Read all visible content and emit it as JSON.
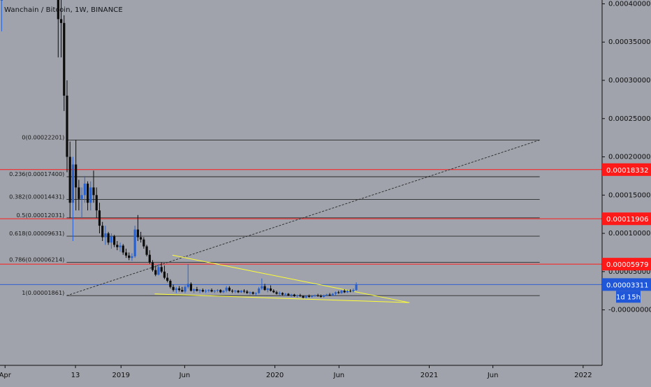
{
  "title": "Wanchain / Bitcoin, 1W, BINANCE",
  "chart_data": {
    "type": "candlestick",
    "title": "Wanchain / Bitcoin, 1W, BINANCE",
    "symbol": "Wanchain / Bitcoin",
    "interval": "1W",
    "exchange": "BINANCE",
    "ylim": [
      -7.25e-05,
      0.000405
    ],
    "y_tick_labels": [
      "0.00040000",
      "0.00035000",
      "0.00030000",
      "0.00025000",
      "0.00020000",
      "0.00015000",
      "0.00010000",
      "0.00005000",
      "-0.00000000"
    ],
    "y_tick_values": [
      0.0004,
      0.00035,
      0.0003,
      0.00025,
      0.0002,
      0.00015,
      0.0001,
      5e-05,
      0
    ],
    "x_tick_labels": [
      "Apr",
      "13",
      "2019",
      "Jun",
      "2020",
      "Jun",
      "2021",
      "Jun",
      "2022"
    ],
    "x_tick_dates": [
      "2018-04-01",
      "2018-09-15",
      "2019-01-01",
      "2019-06-01",
      "2020-01-01",
      "2020-06-01",
      "2021-01-01",
      "2021-06-01",
      "2022-01-01"
    ],
    "x_range": [
      "2018-03-20",
      "2022-02-15"
    ],
    "fib_levels": [
      {
        "ratio": "0",
        "label": "0(0.00022201)",
        "value": 0.00022201
      },
      {
        "ratio": "0.236",
        "label": "0.236(0.00017400)",
        "value": 0.000174
      },
      {
        "ratio": "0.382",
        "label": "0.382(0.00014431)",
        "value": 0.00014431
      },
      {
        "ratio": "0.5",
        "label": "0.5(0.00012031)",
        "value": 0.00012031
      },
      {
        "ratio": "0.618",
        "label": "0.618(0.00009631)",
        "value": 9.631e-05
      },
      {
        "ratio": "0.786",
        "label": "0.786(0.00006214)",
        "value": 6.214e-05
      },
      {
        "ratio": "1",
        "label": "1(0.00001861)",
        "value": 1.861e-05
      }
    ],
    "fib_start_date": "2018-08-25",
    "fib_end_date": "2021-09-20",
    "horizontal_lines": [
      {
        "value": 0.00018332,
        "label": "0.00018332",
        "color": "#ff1a1a"
      },
      {
        "value": 0.00011906,
        "label": "0.00011906",
        "color": "#ff1a1a"
      },
      {
        "value": 5.979e-05,
        "label": "0.00005979",
        "color": "#ff1a1a"
      }
    ],
    "last_price": {
      "value": 3.311e-05,
      "label": "0.00003311",
      "countdown": "1d 15h",
      "color": "#2056d8"
    },
    "trend_lines": [
      {
        "style": "dashed",
        "color": "#2a2a2a",
        "from": {
          "date": "2018-08-25",
          "value": 1.861e-05
        },
        "to": {
          "date": "2021-09-20",
          "value": 0.00022201
        }
      },
      {
        "style": "solid",
        "color": "#ffff33",
        "from": {
          "date": "2019-05-03",
          "value": 7.15e-05
        },
        "to": {
          "date": "2020-11-15",
          "value": 9.5e-06
        }
      },
      {
        "style": "solid",
        "color": "#ffff33",
        "from": {
          "date": "2019-03-22",
          "value": 2.08e-05
        },
        "to": {
          "date": "2020-11-15",
          "value": 9.5e-06
        }
      }
    ],
    "candles": [
      {
        "date": "2018-03-24",
        "o": 0.000405,
        "h": 0.000405,
        "l": 0.000364,
        "c": 0.000405
      },
      {
        "date": "2018-08-05",
        "o": 0.000405,
        "h": 0.000405,
        "l": 0.00033,
        "c": 0.00038
      },
      {
        "date": "2018-08-12",
        "o": 0.00038,
        "h": 0.000405,
        "l": 0.00033,
        "c": 0.000375
      },
      {
        "date": "2018-08-19",
        "o": 0.000375,
        "h": 0.000385,
        "l": 0.00026,
        "c": 0.00028
      },
      {
        "date": "2018-08-26",
        "o": 0.00028,
        "h": 0.0003,
        "l": 0.00018,
        "c": 0.0002
      },
      {
        "date": "2018-09-02",
        "o": 0.0002,
        "h": 0.00022,
        "l": 0.00012,
        "c": 0.00014
      },
      {
        "date": "2018-09-09",
        "o": 0.00014,
        "h": 0.0002,
        "l": 9e-05,
        "c": 0.00019
      },
      {
        "date": "2018-09-16",
        "o": 0.00019,
        "h": 0.000222,
        "l": 0.00013,
        "c": 0.00016
      },
      {
        "date": "2018-09-23",
        "o": 0.00016,
        "h": 0.00017,
        "l": 0.00013,
        "c": 0.000145
      },
      {
        "date": "2018-09-30",
        "o": 0.000145,
        "h": 0.00016,
        "l": 0.00012,
        "c": 0.00015
      },
      {
        "date": "2018-10-07",
        "o": 0.00015,
        "h": 0.000175,
        "l": 0.00014,
        "c": 0.000165
      },
      {
        "date": "2018-10-14",
        "o": 0.000165,
        "h": 0.000168,
        "l": 0.00013,
        "c": 0.00014
      },
      {
        "date": "2018-10-21",
        "o": 0.00014,
        "h": 0.000168,
        "l": 0.00013,
        "c": 0.00016
      },
      {
        "date": "2018-10-28",
        "o": 0.00016,
        "h": 0.000182,
        "l": 0.00014,
        "c": 0.00015
      },
      {
        "date": "2018-11-04",
        "o": 0.00015,
        "h": 0.00016,
        "l": 0.00012,
        "c": 0.00013
      },
      {
        "date": "2018-11-11",
        "o": 0.00013,
        "h": 0.00014,
        "l": 0.0001,
        "c": 0.00011
      },
      {
        "date": "2018-11-18",
        "o": 0.00011,
        "h": 0.000115,
        "l": 9e-05,
        "c": 9.5e-05
      },
      {
        "date": "2018-11-25",
        "o": 9.5e-05,
        "h": 0.00011,
        "l": 8.5e-05,
        "c": 0.0001
      },
      {
        "date": "2018-12-02",
        "o": 0.0001,
        "h": 0.000102,
        "l": 8.5e-05,
        "c": 8.8e-05
      },
      {
        "date": "2018-12-09",
        "o": 8.8e-05,
        "h": 0.0001,
        "l": 8e-05,
        "c": 9.6e-05
      },
      {
        "date": "2018-12-16",
        "o": 9.6e-05,
        "h": 9.8e-05,
        "l": 8.2e-05,
        "c": 8.5e-05
      },
      {
        "date": "2018-12-23",
        "o": 8.5e-05,
        "h": 9e-05,
        "l": 7.8e-05,
        "c": 8.2e-05
      },
      {
        "date": "2018-12-30",
        "o": 8.2e-05,
        "h": 8.8e-05,
        "l": 7.6e-05,
        "c": 8.4e-05
      },
      {
        "date": "2019-01-06",
        "o": 8.4e-05,
        "h": 8.6e-05,
        "l": 7.2e-05,
        "c": 7.5e-05
      },
      {
        "date": "2019-01-13",
        "o": 7.5e-05,
        "h": 8e-05,
        "l": 6.8e-05,
        "c": 7.1e-05
      },
      {
        "date": "2019-01-20",
        "o": 7.1e-05,
        "h": 7.5e-05,
        "l": 6.5e-05,
        "c": 6.8e-05
      },
      {
        "date": "2019-01-27",
        "o": 6.8e-05,
        "h": 7.4e-05,
        "l": 6.4e-05,
        "c": 7e-05
      },
      {
        "date": "2019-02-03",
        "o": 7e-05,
        "h": 0.00011,
        "l": 6.8e-05,
        "c": 0.000105
      },
      {
        "date": "2019-02-10",
        "o": 0.000105,
        "h": 0.000124,
        "l": 9e-05,
        "c": 9.5e-05
      },
      {
        "date": "2019-02-17",
        "o": 9.5e-05,
        "h": 0.000102,
        "l": 8.8e-05,
        "c": 9.2e-05
      },
      {
        "date": "2019-02-24",
        "o": 9.2e-05,
        "h": 9.5e-05,
        "l": 8e-05,
        "c": 8.3e-05
      },
      {
        "date": "2019-03-03",
        "o": 8.3e-05,
        "h": 8.5e-05,
        "l": 7e-05,
        "c": 7.2e-05
      },
      {
        "date": "2019-03-10",
        "o": 7.2e-05,
        "h": 7.8e-05,
        "l": 6e-05,
        "c": 6.2e-05
      },
      {
        "date": "2019-03-17",
        "o": 6.2e-05,
        "h": 6.5e-05,
        "l": 5e-05,
        "c": 5.2e-05
      },
      {
        "date": "2019-03-24",
        "o": 5.2e-05,
        "h": 5.8e-05,
        "l": 4.4e-05,
        "c": 4.6e-05
      },
      {
        "date": "2019-03-31",
        "o": 4.6e-05,
        "h": 6e-05,
        "l": 4.5e-05,
        "c": 5.6e-05
      },
      {
        "date": "2019-04-07",
        "o": 5.6e-05,
        "h": 6.2e-05,
        "l": 4.8e-05,
        "c": 5e-05
      },
      {
        "date": "2019-04-14",
        "o": 5e-05,
        "h": 5.8e-05,
        "l": 4e-05,
        "c": 4.2e-05
      },
      {
        "date": "2019-04-21",
        "o": 4.2e-05,
        "h": 4.8e-05,
        "l": 3.6e-05,
        "c": 3.8e-05
      },
      {
        "date": "2019-04-28",
        "o": 3.8e-05,
        "h": 4e-05,
        "l": 2.8e-05,
        "c": 3e-05
      },
      {
        "date": "2019-05-05",
        "o": 3e-05,
        "h": 3.3e-05,
        "l": 2.4e-05,
        "c": 2.6e-05
      },
      {
        "date": "2019-05-12",
        "o": 2.6e-05,
        "h": 3e-05,
        "l": 2.2e-05,
        "c": 2.8e-05
      },
      {
        "date": "2019-05-19",
        "o": 2.8e-05,
        "h": 3.1e-05,
        "l": 2.4e-05,
        "c": 2.6e-05
      },
      {
        "date": "2019-05-26",
        "o": 2.6e-05,
        "h": 3e-05,
        "l": 2.3e-05,
        "c": 2.4e-05
      },
      {
        "date": "2019-06-02",
        "o": 2.4e-05,
        "h": 3.2e-05,
        "l": 2.2e-05,
        "c": 3e-05
      },
      {
        "date": "2019-06-09",
        "o": 3e-05,
        "h": 6e-05,
        "l": 2.8e-05,
        "c": 3.4e-05
      },
      {
        "date": "2019-06-16",
        "o": 3.4e-05,
        "h": 3.6e-05,
        "l": 2.4e-05,
        "c": 2.5e-05
      },
      {
        "date": "2019-06-23",
        "o": 2.5e-05,
        "h": 2.8e-05,
        "l": 2.2e-05,
        "c": 2.7e-05
      },
      {
        "date": "2019-06-30",
        "o": 2.7e-05,
        "h": 3e-05,
        "l": 2.4e-05,
        "c": 2.5e-05
      },
      {
        "date": "2019-07-07",
        "o": 2.5e-05,
        "h": 2.7e-05,
        "l": 2.2e-05,
        "c": 2.6e-05
      },
      {
        "date": "2019-07-14",
        "o": 2.6e-05,
        "h": 2.8e-05,
        "l": 2.3e-05,
        "c": 2.4e-05
      },
      {
        "date": "2019-07-21",
        "o": 2.4e-05,
        "h": 2.7e-05,
        "l": 2.2e-05,
        "c": 2.5e-05
      },
      {
        "date": "2019-07-28",
        "o": 2.5e-05,
        "h": 2.7e-05,
        "l": 2.3e-05,
        "c": 2.6e-05
      },
      {
        "date": "2019-08-04",
        "o": 2.6e-05,
        "h": 2.8e-05,
        "l": 2.3e-05,
        "c": 2.4e-05
      },
      {
        "date": "2019-08-11",
        "o": 2.4e-05,
        "h": 2.6e-05,
        "l": 2.2e-05,
        "c": 2.5e-05
      },
      {
        "date": "2019-08-18",
        "o": 2.5e-05,
        "h": 2.7e-05,
        "l": 2.3e-05,
        "c": 2.6e-05
      },
      {
        "date": "2019-08-25",
        "o": 2.6e-05,
        "h": 2.7e-05,
        "l": 2.2e-05,
        "c": 2.3e-05
      },
      {
        "date": "2019-09-01",
        "o": 2.3e-05,
        "h": 2.6e-05,
        "l": 2.2e-05,
        "c": 2.5e-05
      },
      {
        "date": "2019-09-08",
        "o": 2.5e-05,
        "h": 3.1e-05,
        "l": 2.3e-05,
        "c": 2.9e-05
      },
      {
        "date": "2019-09-15",
        "o": 2.9e-05,
        "h": 3.1e-05,
        "l": 2.4e-05,
        "c": 2.5e-05
      },
      {
        "date": "2019-09-22",
        "o": 2.5e-05,
        "h": 2.7e-05,
        "l": 2.2e-05,
        "c": 2.4e-05
      },
      {
        "date": "2019-09-29",
        "o": 2.4e-05,
        "h": 2.6e-05,
        "l": 2.2e-05,
        "c": 2.5e-05
      },
      {
        "date": "2019-10-06",
        "o": 2.5e-05,
        "h": 2.6e-05,
        "l": 2.2e-05,
        "c": 2.3e-05
      },
      {
        "date": "2019-10-13",
        "o": 2.3e-05,
        "h": 2.6e-05,
        "l": 2.2e-05,
        "c": 2.5e-05
      },
      {
        "date": "2019-10-20",
        "o": 2.5e-05,
        "h": 2.7e-05,
        "l": 2.2e-05,
        "c": 2.4e-05
      },
      {
        "date": "2019-10-27",
        "o": 2.4e-05,
        "h": 2.6e-05,
        "l": 2.1e-05,
        "c": 2.2e-05
      },
      {
        "date": "2019-11-03",
        "o": 2.2e-05,
        "h": 2.4e-05,
        "l": 2e-05,
        "c": 2.3e-05
      },
      {
        "date": "2019-11-10",
        "o": 2.3e-05,
        "h": 2.4e-05,
        "l": 2e-05,
        "c": 2.1e-05
      },
      {
        "date": "2019-11-17",
        "o": 2.1e-05,
        "h": 2.3e-05,
        "l": 1.9e-05,
        "c": 2.2e-05
      },
      {
        "date": "2019-11-24",
        "o": 2.2e-05,
        "h": 3e-05,
        "l": 2.1e-05,
        "c": 2.8e-05
      },
      {
        "date": "2019-12-01",
        "o": 2.8e-05,
        "h": 4.1e-05,
        "l": 2.6e-05,
        "c": 3.1e-05
      },
      {
        "date": "2019-12-08",
        "o": 3.1e-05,
        "h": 3.4e-05,
        "l": 2.5e-05,
        "c": 2.6e-05
      },
      {
        "date": "2019-12-15",
        "o": 2.6e-05,
        "h": 2.9e-05,
        "l": 2.3e-05,
        "c": 2.8e-05
      },
      {
        "date": "2019-12-22",
        "o": 2.8e-05,
        "h": 3.2e-05,
        "l": 2.4e-05,
        "c": 2.5e-05
      },
      {
        "date": "2019-12-29",
        "o": 2.5e-05,
        "h": 2.7e-05,
        "l": 2.2e-05,
        "c": 2.3e-05
      },
      {
        "date": "2020-01-05",
        "o": 2.3e-05,
        "h": 2.5e-05,
        "l": 2e-05,
        "c": 2.1e-05
      },
      {
        "date": "2020-01-12",
        "o": 2.1e-05,
        "h": 2.4e-05,
        "l": 1.9e-05,
        "c": 2.2e-05
      },
      {
        "date": "2020-01-19",
        "o": 2.2e-05,
        "h": 2.3e-05,
        "l": 1.9e-05,
        "c": 2e-05
      },
      {
        "date": "2020-01-26",
        "o": 2e-05,
        "h": 2.2e-05,
        "l": 1.8e-05,
        "c": 2.1e-05
      },
      {
        "date": "2020-02-02",
        "o": 2.1e-05,
        "h": 2.2e-05,
        "l": 1.8e-05,
        "c": 1.9e-05
      },
      {
        "date": "2020-02-09",
        "o": 1.9e-05,
        "h": 2.1e-05,
        "l": 1.7e-05,
        "c": 2e-05
      },
      {
        "date": "2020-02-16",
        "o": 2e-05,
        "h": 2.1e-05,
        "l": 1.7e-05,
        "c": 1.8e-05
      },
      {
        "date": "2020-02-23",
        "o": 1.8e-05,
        "h": 2e-05,
        "l": 1.6e-05,
        "c": 1.9e-05
      },
      {
        "date": "2020-03-01",
        "o": 1.9e-05,
        "h": 2.1e-05,
        "l": 1.7e-05,
        "c": 1.8e-05
      },
      {
        "date": "2020-03-08",
        "o": 1.8e-05,
        "h": 1.9e-05,
        "l": 1.5e-05,
        "c": 1.6e-05
      },
      {
        "date": "2020-03-15",
        "o": 1.6e-05,
        "h": 1.9e-05,
        "l": 1.5e-05,
        "c": 1.8e-05
      },
      {
        "date": "2020-03-22",
        "o": 1.8e-05,
        "h": 2e-05,
        "l": 1.6e-05,
        "c": 1.7e-05
      },
      {
        "date": "2020-03-29",
        "o": 1.7e-05,
        "h": 1.9e-05,
        "l": 1.6e-05,
        "c": 1.8e-05
      },
      {
        "date": "2020-04-05",
        "o": 1.8e-05,
        "h": 2e-05,
        "l": 1.7e-05,
        "c": 1.9e-05
      },
      {
        "date": "2020-04-12",
        "o": 1.9e-05,
        "h": 2.1e-05,
        "l": 1.7e-05,
        "c": 1.8e-05
      },
      {
        "date": "2020-04-19",
        "o": 1.8e-05,
        "h": 2e-05,
        "l": 1.6e-05,
        "c": 1.7e-05
      },
      {
        "date": "2020-04-26",
        "o": 1.7e-05,
        "h": 2e-05,
        "l": 1.6e-05,
        "c": 1.9e-05
      },
      {
        "date": "2020-05-03",
        "o": 1.9e-05,
        "h": 2.1e-05,
        "l": 1.8e-05,
        "c": 2e-05
      },
      {
        "date": "2020-05-10",
        "o": 2e-05,
        "h": 2.2e-05,
        "l": 1.8e-05,
        "c": 1.9e-05
      },
      {
        "date": "2020-05-17",
        "o": 1.9e-05,
        "h": 2.2e-05,
        "l": 1.8e-05,
        "c": 2.1e-05
      },
      {
        "date": "2020-05-24",
        "o": 2.1e-05,
        "h": 2.4e-05,
        "l": 1.9e-05,
        "c": 2.3e-05
      },
      {
        "date": "2020-05-31",
        "o": 2.3e-05,
        "h": 2.5e-05,
        "l": 2.1e-05,
        "c": 2.2e-05
      },
      {
        "date": "2020-06-07",
        "o": 2.2e-05,
        "h": 2.6e-05,
        "l": 2.1e-05,
        "c": 2.5e-05
      },
      {
        "date": "2020-06-14",
        "o": 2.5e-05,
        "h": 2.7e-05,
        "l": 2.2e-05,
        "c": 2.3e-05
      },
      {
        "date": "2020-06-21",
        "o": 2.3e-05,
        "h": 2.6e-05,
        "l": 2.2e-05,
        "c": 2.5e-05
      },
      {
        "date": "2020-06-28",
        "o": 2.5e-05,
        "h": 2.7e-05,
        "l": 2.3e-05,
        "c": 2.4e-05
      },
      {
        "date": "2020-07-05",
        "o": 2.4e-05,
        "h": 2.8e-05,
        "l": 2.3e-05,
        "c": 2.6e-05
      },
      {
        "date": "2020-07-12",
        "o": 2.6e-05,
        "h": 3.6e-05,
        "l": 2.5e-05,
        "c": 3.3e-05
      }
    ]
  }
}
